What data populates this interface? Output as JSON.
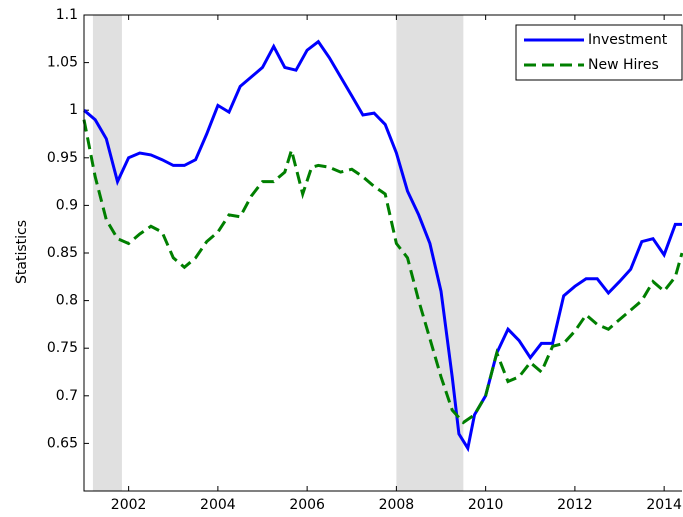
{
  "chart_data": {
    "type": "line",
    "ylabel": "Statistics",
    "xlim": [
      2001,
      2014.4
    ],
    "ylim": [
      0.6,
      1.1
    ],
    "xticks": [
      2002,
      2004,
      2006,
      2008,
      2010,
      2012,
      2014
    ],
    "yticks": [
      0.65,
      0.7,
      0.75,
      0.8,
      0.85,
      0.9,
      0.95,
      1,
      1.05,
      1.1
    ],
    "shaded_regions": [
      [
        2001.2,
        2001.85
      ],
      [
        2008,
        2009.5
      ]
    ],
    "shade_color": "#e0e0e0",
    "legend": "upper right",
    "series": [
      {
        "name": "Investment",
        "color": "#0000ff",
        "dash": false,
        "x": [
          2001.0,
          2001.25,
          2001.5,
          2001.75,
          2002.0,
          2002.25,
          2002.5,
          2002.75,
          2003.0,
          2003.25,
          2003.5,
          2003.75,
          2004.0,
          2004.25,
          2004.5,
          2004.75,
          2005.0,
          2005.25,
          2005.5,
          2005.75,
          2006.0,
          2006.25,
          2006.5,
          2006.75,
          2007.0,
          2007.25,
          2007.5,
          2007.75,
          2008.0,
          2008.25,
          2008.5,
          2008.75,
          2009.0,
          2009.25,
          2009.4,
          2009.6,
          2009.75,
          2010.0,
          2010.25,
          2010.5,
          2010.75,
          2011.0,
          2011.25,
          2011.5,
          2011.75,
          2012.0,
          2012.25,
          2012.5,
          2012.75,
          2013.0,
          2013.25,
          2013.5,
          2013.75,
          2014.0,
          2014.25,
          2014.4
        ],
        "values": [
          1.0,
          0.99,
          0.97,
          0.925,
          0.95,
          0.955,
          0.953,
          0.948,
          0.942,
          0.942,
          0.948,
          0.975,
          1.005,
          0.998,
          1.025,
          1.035,
          1.045,
          1.067,
          1.045,
          1.042,
          1.063,
          1.072,
          1.055,
          1.035,
          1.015,
          0.995,
          0.997,
          0.985,
          0.955,
          0.915,
          0.89,
          0.86,
          0.81,
          0.72,
          0.66,
          0.645,
          0.68,
          0.7,
          0.745,
          0.77,
          0.758,
          0.74,
          0.755,
          0.755,
          0.805,
          0.815,
          0.823,
          0.823,
          0.808,
          0.82,
          0.833,
          0.862,
          0.865,
          0.848,
          0.88,
          0.88
        ]
      },
      {
        "name": "New Hires",
        "color": "#007f00",
        "dash": true,
        "x": [
          2001.0,
          2001.25,
          2001.5,
          2001.75,
          2002.0,
          2002.25,
          2002.5,
          2002.75,
          2003.0,
          2003.25,
          2003.5,
          2003.75,
          2004.0,
          2004.25,
          2004.5,
          2004.75,
          2005.0,
          2005.25,
          2005.5,
          2005.65,
          2005.9,
          2006.1,
          2006.25,
          2006.5,
          2006.75,
          2007.0,
          2007.25,
          2007.5,
          2007.75,
          2008.0,
          2008.25,
          2008.5,
          2008.75,
          2009.0,
          2009.25,
          2009.5,
          2009.75,
          2010.0,
          2010.25,
          2010.5,
          2010.75,
          2011.0,
          2011.25,
          2011.5,
          2011.75,
          2012.0,
          2012.25,
          2012.5,
          2012.75,
          2013.0,
          2013.25,
          2013.5,
          2013.75,
          2014.0,
          2014.25,
          2014.4
        ],
        "values": [
          0.99,
          0.93,
          0.885,
          0.865,
          0.86,
          0.87,
          0.878,
          0.872,
          0.845,
          0.835,
          0.845,
          0.862,
          0.872,
          0.89,
          0.888,
          0.91,
          0.925,
          0.925,
          0.935,
          0.958,
          0.912,
          0.94,
          0.942,
          0.94,
          0.935,
          0.938,
          0.93,
          0.92,
          0.912,
          0.86,
          0.845,
          0.8,
          0.76,
          0.72,
          0.685,
          0.672,
          0.68,
          0.7,
          0.745,
          0.715,
          0.72,
          0.735,
          0.725,
          0.752,
          0.755,
          0.768,
          0.785,
          0.775,
          0.77,
          0.78,
          0.79,
          0.8,
          0.82,
          0.81,
          0.825,
          0.85
        ]
      }
    ]
  }
}
